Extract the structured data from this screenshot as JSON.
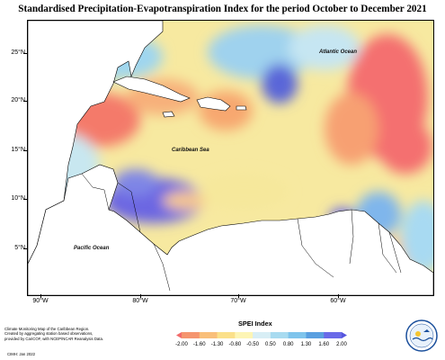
{
  "title": "Standardised Precipitation-Evapotranspiration Index for the period October to December 2021",
  "map": {
    "latitude_labels": [
      "25°N",
      "20°N",
      "15°N",
      "10°N",
      "5°N"
    ],
    "longitude_labels": [
      "90°W",
      "80°W",
      "70°W",
      "60°W"
    ],
    "ocean_labels": {
      "atlantic": "Atlantic Ocean",
      "caribbean": "Caribbean Sea",
      "pacific": "Pacific Ocean"
    }
  },
  "footer": {
    "notes": [
      "Climate Monitoring Map of the Caribbean Region.",
      "Created by aggregating station based observations,",
      "provided by CariCOF, with NCEP/NCAR Reanalysis Data."
    ],
    "credit": "CIMH: Jan 2022"
  },
  "legend": {
    "title": "SPEI Index",
    "ticks": [
      "-2.00",
      "-1.60",
      "-1.30",
      "-0.80",
      "-0.50",
      "0.50",
      "0.80",
      "1.30",
      "1.60",
      "2.00"
    ],
    "colors": [
      "#f26a6a",
      "#f5956f",
      "#f9bf7a",
      "#fbe08a",
      "#fdf5b5",
      "#d8eef5",
      "#a8dbf0",
      "#7fc4ec",
      "#5a9fe0",
      "#6a6ae8",
      "#5555dd"
    ]
  },
  "logo": {
    "text": "CIMH",
    "accent": "#1a4f9c"
  }
}
